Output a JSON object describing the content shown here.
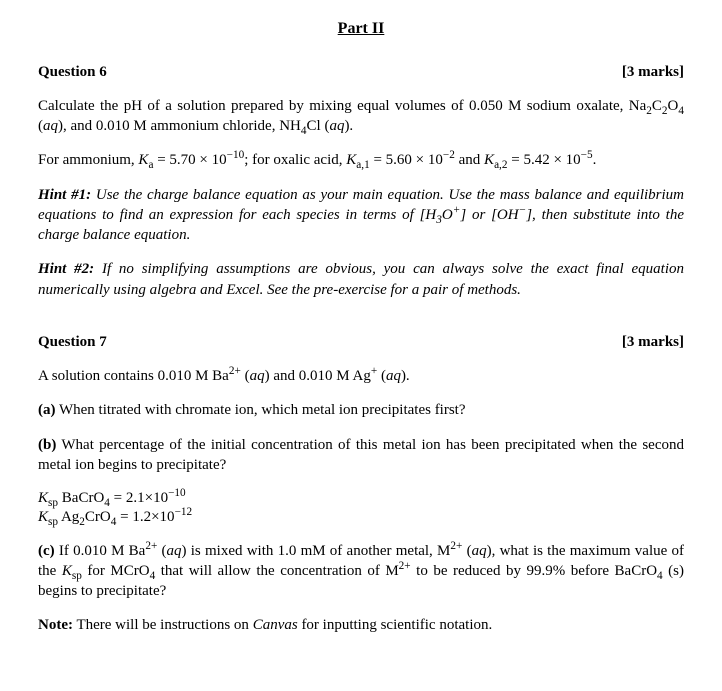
{
  "part_title": "Part II",
  "q6": {
    "label": "Question 6",
    "marks": "[3 marks]",
    "p1_a": "Calculate the pH of a solution prepared by mixing equal volumes of 0.050 M sodium oxalate, Na",
    "p1_b": "C",
    "p1_c": "O",
    "p1_d": " (",
    "p1_aq1": "aq",
    "p1_e": "), and 0.010 M ammonium chloride, NH",
    "p1_f": "Cl (",
    "p1_aq2": "aq",
    "p1_g": ").",
    "p2_a": "For ammonium, ",
    "p2_ka": "K",
    "p2_a_sub": "a",
    "p2_b": " = 5.70 × 10",
    "p2_c": "; for oxalic acid, ",
    "p2_ka1": "K",
    "p2_a1_sub": "a,1",
    "p2_d": " = 5.60 × 10",
    "p2_e": " and ",
    "p2_ka2": "K",
    "p2_a2_sub": "a,2",
    "p2_f": " = 5.42 × 10",
    "p2_g": ".",
    "exp_m10": "−10",
    "exp_m2": "−2",
    "exp_m5": "−5",
    "hint1_label": "Hint #1:",
    "hint1_a": " Use the charge balance equation as your main equation. Use the mass balance and equilibrium equations to find an expression for each species in terms of [H",
    "hint1_b": "O",
    "hint1_c": "] or [OH",
    "hint1_d": "], then substitute into the charge balance equation.",
    "hint2_label": "Hint #2:",
    "hint2_text": " If no simplifying assumptions are obvious, you can always solve the exact final equation numerically using algebra and Excel. See the pre-exercise for a pair of methods."
  },
  "q7": {
    "label": "Question 7",
    "marks": "[3 marks]",
    "intro_a": "A solution contains 0.010 M Ba",
    "intro_b": " (",
    "intro_aq1": "aq",
    "intro_c": ") and 0.010 M Ag",
    "intro_d": " (",
    "intro_aq2": "aq",
    "intro_e": ").",
    "a_label": "(a)",
    "a_text": " When titrated with chromate ion, which metal ion precipitates first?",
    "b_label": "(b)",
    "b_text": " What percentage of the initial concentration of this metal ion has been precipitated when the second metal ion begins to precipitate?",
    "ksp1_a": "K",
    "ksp1_sub": "sp",
    "ksp1_b": " BaCrO",
    "ksp1_c": " = 2.1×10",
    "ksp1_exp": "−10",
    "ksp2_a": "K",
    "ksp2_sub": "sp",
    "ksp2_b": " Ag",
    "ksp2_c": "CrO",
    "ksp2_d": " = 1.2×10",
    "ksp2_exp": "−12",
    "c_label": "(c)",
    "c_a": " If 0.010 M Ba",
    "c_b": " (",
    "c_aq1": "aq",
    "c_c": ") is mixed with 1.0 mM of another metal, M",
    "c_d": " (",
    "c_aq2": "aq",
    "c_e": "), what is the maximum value of the ",
    "c_ksp": "K",
    "c_ksp_sub": "sp",
    "c_f": " for MCrO",
    "c_g": " that will allow the concentration of M",
    "c_h": " to be reduced by 99.9% before BaCrO",
    "c_i": " (s) begins to precipitate?",
    "note_label": "Note:",
    "note_text": " There will be instructions on ",
    "note_canvas": "Canvas",
    "note_text2": " for inputting scientific notation.",
    "sup_2plus": "2+",
    "sup_plus": "+",
    "sup_minus": "−",
    "sub_2": "2",
    "sub_3": "3",
    "sub_4": "4"
  }
}
